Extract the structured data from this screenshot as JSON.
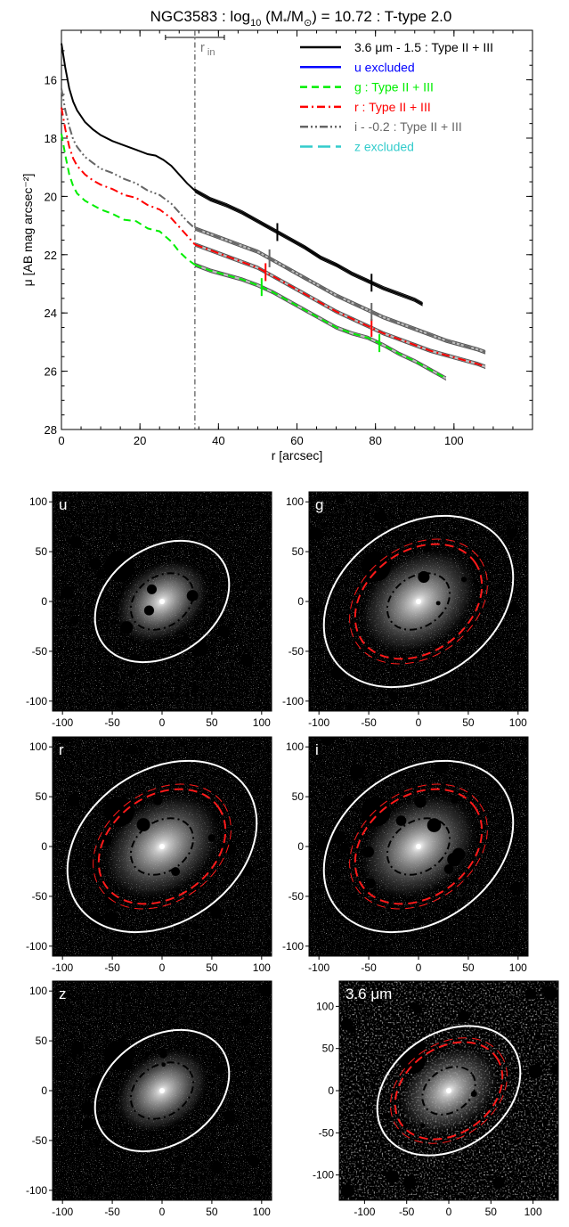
{
  "title": {
    "prefix": "NGC3583 : log",
    "sub": "10",
    "mid": " (M",
    "star": "*",
    "over": "/M",
    "sun": "⊙",
    "suffix": ") = 10.72 : T-type 2.0"
  },
  "chart_data": [
    {
      "type": "line",
      "xlabel": "r [arcsec]",
      "ylabel": "μ [AB mag arcsec⁻²]",
      "xlim": [
        0,
        120
      ],
      "ylim": [
        28,
        14.3
      ],
      "y_inverted": true,
      "xticks": [
        "0",
        "20",
        "40",
        "60",
        "80",
        "100"
      ],
      "yticks": [
        "16",
        "18",
        "20",
        "22",
        "24",
        "26",
        "28"
      ],
      "legend_position": "top-right",
      "annotations": {
        "r_in_label": "r",
        "r_in_sub": "in",
        "r_in": 34,
        "r_in_err": [
          26.5,
          41.5
        ]
      },
      "series": [
        {
          "name": "3.6 μm - 1.5 : Type II + III",
          "color": "#000000",
          "dash": "solid",
          "x": [
            0,
            1,
            2,
            3,
            4,
            6,
            8,
            10,
            13,
            16,
            19,
            22,
            24,
            26,
            28,
            30,
            32,
            34,
            38,
            42,
            46,
            50,
            54,
            58,
            62,
            66,
            70,
            74,
            78,
            82,
            86,
            90,
            92
          ],
          "y": [
            14.75,
            15.6,
            16.3,
            16.75,
            17.05,
            17.45,
            17.7,
            17.9,
            18.1,
            18.25,
            18.4,
            18.55,
            18.6,
            18.75,
            18.95,
            19.25,
            19.55,
            19.8,
            20.1,
            20.3,
            20.55,
            20.85,
            21.15,
            21.45,
            21.75,
            22.1,
            22.35,
            22.65,
            22.9,
            23.15,
            23.35,
            23.55,
            23.7
          ],
          "breaks": [
            55,
            79
          ]
        },
        {
          "name": "u excluded",
          "color": "#0000ff",
          "dash": "solid",
          "x": [],
          "y": []
        },
        {
          "name": "g : Type II + III",
          "color": "#00ee00",
          "dash": "dashed",
          "x": [
            0,
            1,
            2,
            3,
            4,
            6,
            8,
            10,
            13,
            16,
            19,
            22,
            25,
            28,
            30,
            32,
            34,
            38,
            42,
            46,
            50,
            54,
            58,
            62,
            66,
            70,
            74,
            78,
            82,
            86,
            90,
            94,
            98
          ],
          "y": [
            17.85,
            18.6,
            19.25,
            19.65,
            19.9,
            20.15,
            20.3,
            20.45,
            20.6,
            20.8,
            20.85,
            21.1,
            21.2,
            21.55,
            21.9,
            22.15,
            22.35,
            22.55,
            22.7,
            22.85,
            23.05,
            23.3,
            23.6,
            23.9,
            24.2,
            24.5,
            24.7,
            24.85,
            25.1,
            25.4,
            25.65,
            25.95,
            26.25
          ],
          "breaks": [
            51,
            81
          ]
        },
        {
          "name": "r : Type II + III",
          "color": "#ff0000",
          "dash": "dash-dot",
          "x": [
            0,
            1,
            2,
            3,
            4,
            6,
            8,
            10,
            13,
            16,
            19,
            22,
            25,
            28,
            30,
            32,
            34,
            38,
            42,
            46,
            50,
            54,
            58,
            62,
            66,
            70,
            74,
            78,
            82,
            86,
            90,
            94,
            98,
            102,
            106,
            108
          ],
          "y": [
            16.95,
            17.7,
            18.3,
            18.7,
            18.95,
            19.25,
            19.45,
            19.6,
            19.75,
            19.95,
            20.05,
            20.3,
            20.45,
            20.75,
            21.05,
            21.35,
            21.65,
            21.85,
            22.05,
            22.25,
            22.45,
            22.75,
            23.05,
            23.35,
            23.65,
            23.95,
            24.2,
            24.45,
            24.7,
            24.9,
            25.1,
            25.3,
            25.45,
            25.6,
            25.75,
            25.85
          ],
          "breaks": [
            52,
            79
          ]
        },
        {
          "name": "i - -0.2 : Type II + III",
          "color": "#666666",
          "dash": "dash-dot-dot",
          "x": [
            0,
            1,
            2,
            3,
            4,
            6,
            8,
            10,
            13,
            16,
            19,
            22,
            25,
            28,
            30,
            32,
            34,
            38,
            42,
            46,
            50,
            54,
            58,
            62,
            66,
            70,
            74,
            78,
            82,
            86,
            90,
            94,
            98,
            102,
            106,
            108
          ],
          "y": [
            16.3,
            17.05,
            17.6,
            18.05,
            18.3,
            18.65,
            18.85,
            19.05,
            19.2,
            19.4,
            19.55,
            19.8,
            19.95,
            20.25,
            20.55,
            20.85,
            21.1,
            21.3,
            21.5,
            21.7,
            21.9,
            22.2,
            22.5,
            22.8,
            23.1,
            23.4,
            23.65,
            23.9,
            24.15,
            24.35,
            24.55,
            24.75,
            24.95,
            25.1,
            25.25,
            25.35
          ],
          "breaks": [
            53,
            79
          ]
        },
        {
          "name": "z excluded",
          "color": "#33cccc",
          "dash": "long-dash",
          "x": [],
          "y": []
        }
      ]
    },
    {
      "type": "heatmap",
      "panels": [
        {
          "label": "u",
          "xticks": [
            "-100",
            "-50",
            "0",
            "50",
            "100"
          ],
          "yticks": [
            "100",
            "50",
            "0",
            "-50",
            "-100"
          ],
          "xlim": [
            -110,
            110
          ],
          "ylim": [
            -110,
            110
          ],
          "outer_ellipse_a": 73,
          "inner_break": 34,
          "outer_break": null,
          "masked_patch": [
            -43,
            35,
            15
          ]
        },
        {
          "label": "g",
          "xticks": [
            "-100",
            "-50",
            "0",
            "50",
            "100"
          ],
          "yticks": [
            "100",
            "50",
            "0",
            "-50",
            "-100"
          ],
          "xlim": [
            -110,
            110
          ],
          "ylim": [
            -110,
            110
          ],
          "outer_ellipse_a": 103,
          "inner_break": 34,
          "outer_break": 69,
          "masked_patch": [
            -43,
            35,
            15
          ]
        },
        {
          "label": "r",
          "xticks": [
            "-100",
            "-50",
            "0",
            "50",
            "100"
          ],
          "yticks": [
            "100",
            "50",
            "0",
            "-50",
            "-100"
          ],
          "xlim": [
            -110,
            110
          ],
          "ylim": [
            -110,
            110
          ],
          "outer_ellipse_a": 103,
          "inner_break": 34,
          "outer_break": 69,
          "masked_patch": [
            -43,
            35,
            15
          ]
        },
        {
          "label": "i",
          "xticks": [
            "-100",
            "-50",
            "0",
            "50",
            "100"
          ],
          "yticks": [
            "100",
            "50",
            "0",
            "-50",
            "-100"
          ],
          "xlim": [
            -110,
            110
          ],
          "ylim": [
            -110,
            110
          ],
          "outer_ellipse_a": 103,
          "inner_break": 34,
          "outer_break": 69,
          "masked_patch": [
            -43,
            35,
            15
          ]
        },
        {
          "label": "z",
          "xticks": [
            "-100",
            "-50",
            "0",
            "50",
            "100"
          ],
          "yticks": [
            "100",
            "50",
            "0",
            "-50",
            "-100"
          ],
          "xlim": [
            -110,
            110
          ],
          "ylim": [
            -110,
            110
          ],
          "outer_ellipse_a": 73,
          "inner_break": 34,
          "outer_break": null,
          "masked_patch": [
            -43,
            35,
            15
          ]
        },
        {
          "label": "3.6 μm",
          "xticks": [
            "-100",
            "-50",
            "0",
            "50",
            "100"
          ],
          "yticks": [
            "100",
            "50",
            "0",
            "-50",
            "-100"
          ],
          "xlim": [
            -130,
            130
          ],
          "ylim": [
            -130,
            130
          ],
          "outer_ellipse_a": 92,
          "inner_break": 34,
          "outer_break": 69,
          "masked_patch": [
            -43,
            35,
            15
          ]
        }
      ]
    }
  ]
}
